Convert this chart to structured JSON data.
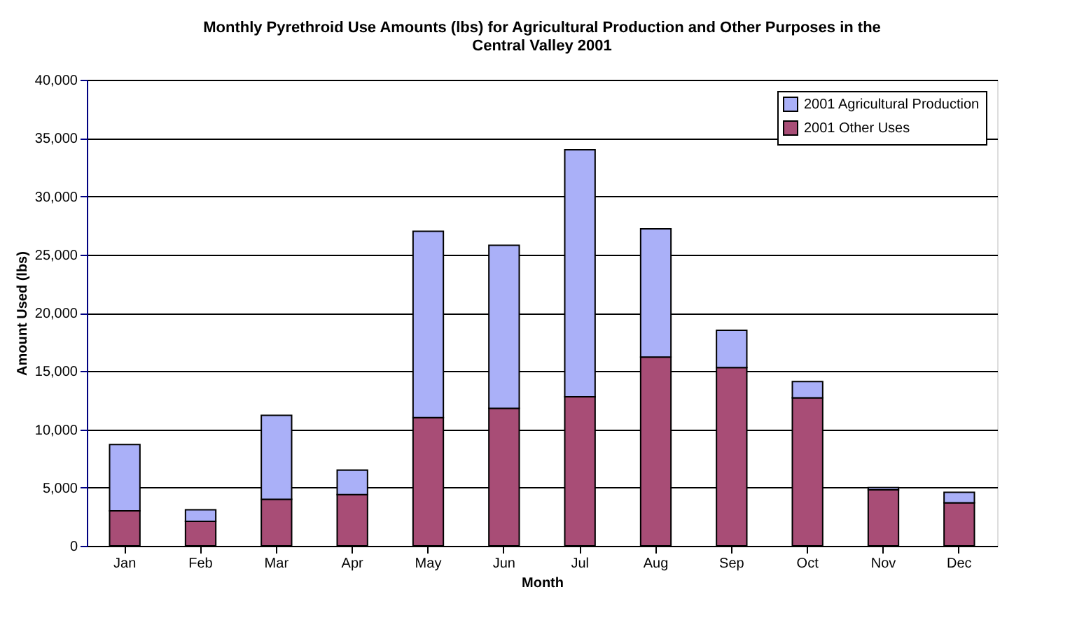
{
  "chart_data": {
    "type": "bar",
    "stacked": true,
    "title": "Monthly Pyrethroid Use Amounts (lbs) for Agricultural Production and Other Purposes in the Central Valley 2001",
    "xlabel": "Month",
    "ylabel": "Amount Used (lbs)",
    "categories": [
      "Jan",
      "Feb",
      "Mar",
      "Apr",
      "May",
      "Jun",
      "Jul",
      "Aug",
      "Sep",
      "Oct",
      "Nov",
      "Dec"
    ],
    "series": [
      {
        "name": "2001 Other Uses",
        "color": "#a84d76",
        "values": [
          3000,
          2100,
          4000,
          4400,
          11000,
          11800,
          12800,
          16200,
          15300,
          12700,
          4800,
          3700
        ]
      },
      {
        "name": "2001 Agricultural Production",
        "color": "#aab0f8",
        "values": [
          5700,
          1000,
          7200,
          2100,
          16000,
          14000,
          21200,
          11000,
          3200,
          1400,
          200,
          900
        ]
      }
    ],
    "ylim": [
      0,
      40000
    ],
    "yticks": [
      0,
      {
        "value": 5000,
        "label": "5,000"
      },
      {
        "value": 10000,
        "label": "10,000"
      },
      {
        "value": 15000,
        "label": "15,000"
      },
      {
        "value": 20000,
        "label": "20,000"
      },
      {
        "value": 25000,
        "label": "25,000"
      },
      {
        "value": 30000,
        "label": "30,000"
      },
      {
        "value": 35000,
        "label": "35,000"
      },
      {
        "value": 40000,
        "label": "40,000"
      }
    ],
    "grid": "y",
    "legend": "top right"
  }
}
